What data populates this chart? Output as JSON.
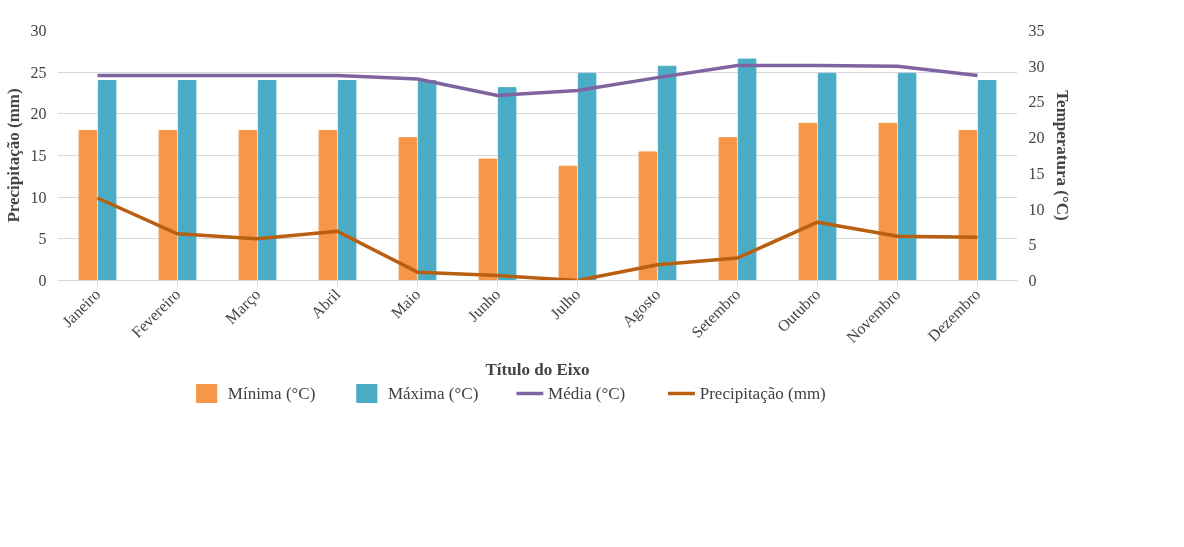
{
  "chart_data": {
    "type": "bar",
    "xlabel": "Título do Eixo",
    "ylabel": "Precipitação (mm)",
    "y2label": "Temperatura (°C)",
    "categories": [
      "Janeiro",
      "Fevereiro",
      "Março",
      "Abril",
      "Maio",
      "Junho",
      "Julho",
      "Agosto",
      "Setembro",
      "Outubro",
      "Novembro",
      "Dezembro"
    ],
    "series": [
      {
        "name": "Mínima (°C)",
        "axis": "y2",
        "color": "#f79646",
        "values": [
          21,
          21,
          21,
          21,
          20,
          17,
          16,
          18,
          20,
          22,
          22,
          21
        ]
      },
      {
        "name": "Máxima (°C)",
        "axis": "y2",
        "color": "#4bacc6",
        "values": [
          28,
          28,
          28,
          28,
          28,
          27,
          29,
          30,
          31,
          29,
          29,
          28
        ]
      },
      {
        "name": "Média (°C)",
        "type": "line",
        "axis": "y2",
        "color": "#8064a2",
        "values": [
          28.7,
          28.7,
          28.7,
          28.7,
          28.2,
          25.9,
          26.6,
          28.4,
          30.1,
          30.1,
          30.0,
          28.7
        ]
      },
      {
        "name": "Precipitação (mm)",
        "type": "line",
        "axis": "y",
        "color": "#b8600f",
        "values": [
          9.9,
          5.6,
          5.0,
          5.9,
          1.0,
          0.6,
          0,
          1.9,
          2.7,
          7.0,
          5.3,
          5.2
        ]
      }
    ],
    "ylim": [
      0,
      30
    ],
    "yticks": [
      0,
      5,
      10,
      15,
      20,
      25,
      30
    ],
    "y2lim": [
      0,
      35
    ],
    "y2ticks": [
      0,
      5,
      10,
      15,
      20,
      25,
      30,
      35
    ],
    "grid": "y",
    "legend": "bottom",
    "line_style": "solid",
    "marker": "none"
  }
}
